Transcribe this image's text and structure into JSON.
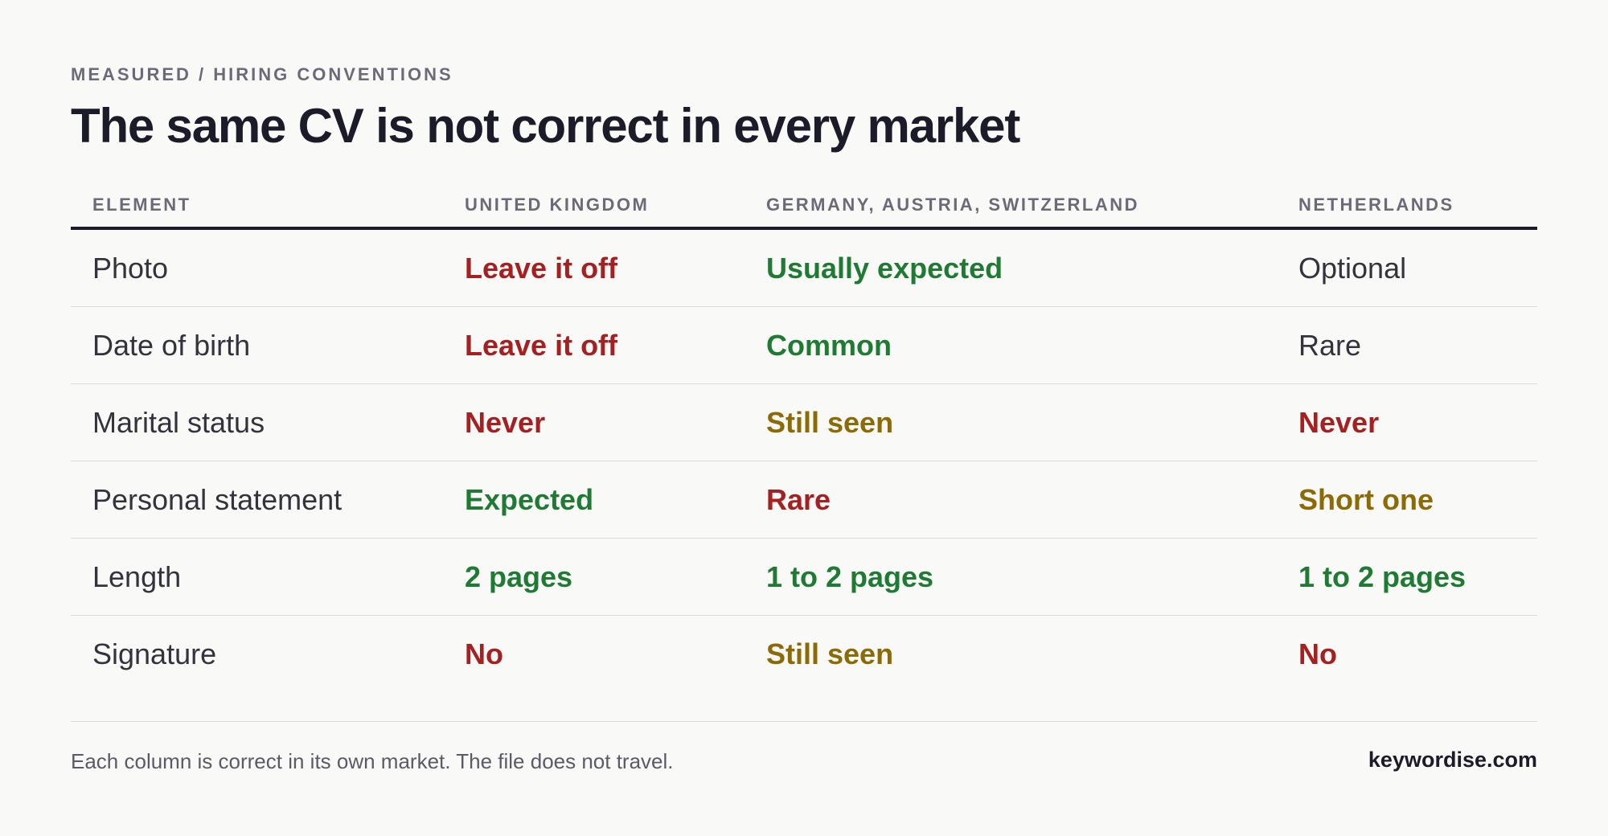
{
  "eyebrow": "MEASURED / HIRING CONVENTIONS",
  "title": "The same CV is not correct in every market",
  "table": {
    "headers": [
      "ELEMENT",
      "UNITED KINGDOM",
      "GERMANY, AUSTRIA, SWITZERLAND",
      "NETHERLANDS"
    ],
    "rows": [
      {
        "element": "Photo",
        "cells": [
          {
            "text": "Leave it off",
            "color": "#a52020"
          },
          {
            "text": "Usually expected",
            "color": "#1f7a34"
          },
          {
            "text": "Optional",
            "color": "#33333d"
          }
        ]
      },
      {
        "element": "Date of birth",
        "cells": [
          {
            "text": "Leave it off",
            "color": "#a52020"
          },
          {
            "text": "Common",
            "color": "#1f7a34"
          },
          {
            "text": "Rare",
            "color": "#33333d"
          }
        ]
      },
      {
        "element": "Marital status",
        "cells": [
          {
            "text": "Never",
            "color": "#a52020"
          },
          {
            "text": "Still seen",
            "color": "#8c6a05"
          },
          {
            "text": "Never",
            "color": "#a52020"
          }
        ]
      },
      {
        "element": "Personal statement",
        "cells": [
          {
            "text": "Expected",
            "color": "#1f7a34"
          },
          {
            "text": "Rare",
            "color": "#a52020"
          },
          {
            "text": "Short one",
            "color": "#8c6a05"
          }
        ]
      },
      {
        "element": "Length",
        "cells": [
          {
            "text": "2 pages",
            "color": "#1f7a34"
          },
          {
            "text": "1 to 2 pages",
            "color": "#1f7a34"
          },
          {
            "text": "1 to 2 pages",
            "color": "#1f7a34"
          }
        ]
      },
      {
        "element": "Signature",
        "cells": [
          {
            "text": "No",
            "color": "#a52020"
          },
          {
            "text": "Still seen",
            "color": "#8c6a05"
          },
          {
            "text": "No",
            "color": "#a52020"
          }
        ]
      }
    ]
  },
  "footer": {
    "note": "Each column is correct in its own market. The file does not travel.",
    "brand": "keywordise.com"
  }
}
